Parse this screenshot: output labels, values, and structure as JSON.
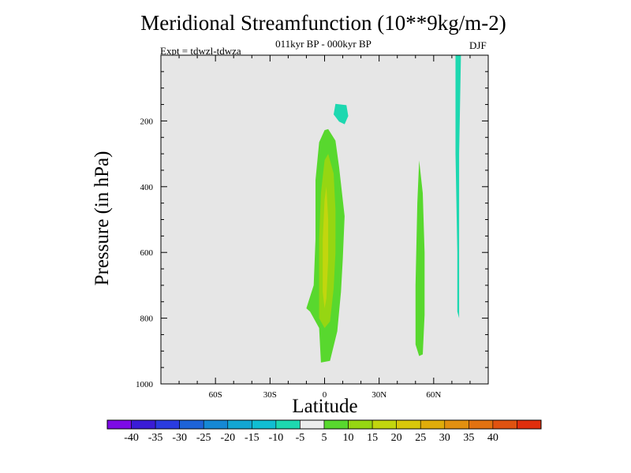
{
  "chart_data": {
    "type": "contour",
    "title": "Meridional Streamfunction (10**9kg/m-2)",
    "subtitle": "011kyr BP - 000kyr BP",
    "experiment": "Expt = tdwzl-tdwza",
    "season": "DJF",
    "xlabel": "Latitude",
    "ylabel": "Pressure (in hPa)",
    "xlim": [
      -90,
      90
    ],
    "ylim": [
      1000,
      0
    ],
    "x_ticks": [
      {
        "value": -60,
        "label": "60S"
      },
      {
        "value": -30,
        "label": "30S"
      },
      {
        "value": 0,
        "label": "0"
      },
      {
        "value": 30,
        "label": "30N"
      },
      {
        "value": 60,
        "label": "60N"
      }
    ],
    "y_ticks": [
      {
        "value": 200,
        "label": "200"
      },
      {
        "value": 400,
        "label": "400"
      },
      {
        "value": 600,
        "label": "600"
      },
      {
        "value": 800,
        "label": "800"
      },
      {
        "value": 1000,
        "label": "1000"
      }
    ],
    "regions": [
      {
        "name": "tropical-positive",
        "level": "5 to 10",
        "points": [
          [
            2,
            225
          ],
          [
            6,
            260
          ],
          [
            8,
            340
          ],
          [
            11,
            490
          ],
          [
            10,
            620
          ],
          [
            9,
            720
          ],
          [
            7,
            840
          ],
          [
            3,
            930
          ],
          [
            -2,
            935
          ],
          [
            -3,
            830
          ],
          [
            -8,
            780
          ],
          [
            -10,
            770
          ],
          [
            -6,
            700
          ],
          [
            -5,
            560
          ],
          [
            -5,
            380
          ],
          [
            -3,
            265
          ],
          [
            0,
            228
          ]
        ]
      },
      {
        "name": "tropical-positive-core",
        "level": "10 to 15",
        "points": [
          [
            2,
            300
          ],
          [
            5,
            360
          ],
          [
            6,
            470
          ],
          [
            6,
            600
          ],
          [
            5,
            710
          ],
          [
            3,
            810
          ],
          [
            0,
            830
          ],
          [
            -3,
            800
          ],
          [
            -3,
            700
          ],
          [
            -3,
            560
          ],
          [
            -2,
            420
          ],
          [
            0,
            320
          ]
        ]
      },
      {
        "name": "tropical-positive-center",
        "level": "15 to 20",
        "points": [
          [
            1,
            400
          ],
          [
            2,
            500
          ],
          [
            2,
            620
          ],
          [
            1,
            740
          ],
          [
            0,
            770
          ],
          [
            -1,
            720
          ],
          [
            -1,
            560
          ],
          [
            0,
            440
          ]
        ]
      },
      {
        "name": "upper-negative-cell",
        "level": "-10 to -5",
        "points": [
          [
            6,
            148
          ],
          [
            12,
            152
          ],
          [
            13,
            185
          ],
          [
            11,
            210
          ],
          [
            8,
            202
          ],
          [
            5,
            180
          ]
        ]
      },
      {
        "name": "midlatitude-positive",
        "level": "5 to 10",
        "points": [
          [
            52,
            320
          ],
          [
            54,
            420
          ],
          [
            55,
            600
          ],
          [
            55,
            790
          ],
          [
            54,
            910
          ],
          [
            52,
            915
          ],
          [
            50,
            880
          ],
          [
            50,
            700
          ],
          [
            51,
            450
          ]
        ]
      },
      {
        "name": "polar-negative-strip",
        "level": "-10 to -5",
        "points": [
          [
            72,
            0
          ],
          [
            75,
            0
          ],
          [
            74,
            300
          ],
          [
            74,
            700
          ],
          [
            74,
            800
          ],
          [
            73,
            780
          ],
          [
            73,
            600
          ],
          [
            72,
            300
          ]
        ]
      }
    ],
    "colorbar": {
      "labels": [
        "-40",
        "-35",
        "-30",
        "-25",
        "-20",
        "-15",
        "-10",
        "-5",
        "5",
        "10",
        "15",
        "20",
        "25",
        "30",
        "35",
        "40"
      ],
      "colors": [
        "#7d0ae6",
        "#3a1cd6",
        "#2a3be0",
        "#1e63d8",
        "#1588d4",
        "#13a6d2",
        "#10bed2",
        "#1dd8b0",
        "#ececec",
        "#58d82e",
        "#96d612",
        "#c2d60e",
        "#d9c80a",
        "#e0ac0a",
        "#e29010",
        "#e27210",
        "#e05210",
        "#e02e0c"
      ]
    },
    "background_color": "#e6e6e6"
  }
}
